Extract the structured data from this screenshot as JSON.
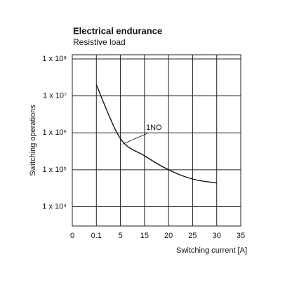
{
  "chart_data": {
    "type": "line",
    "title": "Electrical endurance",
    "subtitle": "Resistive load",
    "y_label": "Switching operations",
    "x_label": "Switching current [A]",
    "categories": [
      "0",
      "0.1",
      "5",
      "15",
      "20",
      "25",
      "30",
      "35"
    ],
    "log_y": true,
    "grid": true,
    "ylim": [
      3000,
      130000000
    ],
    "yticks": [
      {
        "value": 100000000,
        "label": "1 x 10⁸"
      },
      {
        "value": 10000000,
        "label": "1 x 10⁷"
      },
      {
        "value": 1000000,
        "label": "1 x 10⁶"
      },
      {
        "value": 100000,
        "label": "1 x 10⁵"
      },
      {
        "value": 10000,
        "label": "1 x 10⁴"
      }
    ],
    "series": [
      {
        "name": "1NO",
        "color": "#111111",
        "values": [
          null,
          20000000,
          700000,
          240000,
          100000,
          56000,
          44000,
          null
        ]
      }
    ]
  }
}
